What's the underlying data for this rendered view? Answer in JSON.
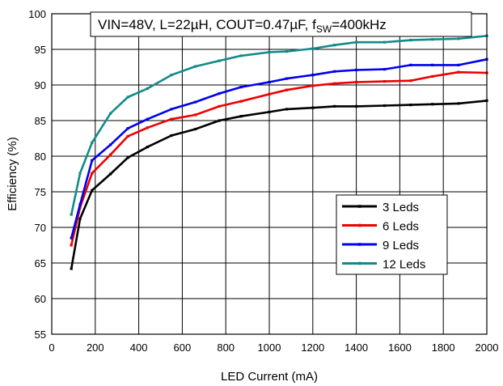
{
  "chart_data": {
    "type": "line",
    "title": "VIN=48V, L=22µH, COUT=0.47µF, f",
    "title_sub": "SW",
    "title_suffix": "=400kHz",
    "xlabel": "LED Current (mA)",
    "ylabel": "Efficiency (%)",
    "xlim": [
      0,
      2000
    ],
    "ylim": [
      55,
      100
    ],
    "xticks": [
      0,
      200,
      400,
      600,
      800,
      1000,
      1200,
      1400,
      1600,
      1800,
      2000
    ],
    "yticks": [
      55,
      60,
      65,
      70,
      75,
      80,
      85,
      90,
      95,
      100
    ],
    "grid": true,
    "legend_position": "lower-right",
    "series": [
      {
        "name": "3 Leds",
        "color": "#000000",
        "points": [
          [
            90,
            64.2
          ],
          [
            130,
            71.2
          ],
          [
            185,
            75.2
          ],
          [
            270,
            77.5
          ],
          [
            350,
            79.8
          ],
          [
            440,
            81.3
          ],
          [
            550,
            82.9
          ],
          [
            660,
            83.8
          ],
          [
            770,
            85.0
          ],
          [
            870,
            85.6
          ],
          [
            1000,
            86.2
          ],
          [
            1080,
            86.6
          ],
          [
            1200,
            86.8
          ],
          [
            1300,
            87.0
          ],
          [
            1400,
            87.0
          ],
          [
            1530,
            87.1
          ],
          [
            1650,
            87.2
          ],
          [
            1750,
            87.3
          ],
          [
            1870,
            87.4
          ],
          [
            2000,
            87.8
          ]
        ]
      },
      {
        "name": "6 Leds",
        "color": "#ee0000",
        "points": [
          [
            90,
            67.5
          ],
          [
            130,
            72.8
          ],
          [
            185,
            77.6
          ],
          [
            270,
            80.2
          ],
          [
            350,
            82.8
          ],
          [
            440,
            84.0
          ],
          [
            550,
            85.2
          ],
          [
            660,
            85.8
          ],
          [
            770,
            87.0
          ],
          [
            870,
            87.7
          ],
          [
            1000,
            88.7
          ],
          [
            1080,
            89.3
          ],
          [
            1200,
            89.9
          ],
          [
            1300,
            90.2
          ],
          [
            1400,
            90.4
          ],
          [
            1530,
            90.5
          ],
          [
            1650,
            90.6
          ],
          [
            1750,
            91.2
          ],
          [
            1870,
            91.8
          ],
          [
            2000,
            91.7
          ]
        ]
      },
      {
        "name": "9 Leds",
        "color": "#0000ee",
        "points": [
          [
            90,
            68.5
          ],
          [
            130,
            73.2
          ],
          [
            185,
            79.4
          ],
          [
            270,
            81.6
          ],
          [
            350,
            83.9
          ],
          [
            440,
            85.2
          ],
          [
            550,
            86.6
          ],
          [
            660,
            87.6
          ],
          [
            770,
            88.8
          ],
          [
            870,
            89.7
          ],
          [
            1000,
            90.4
          ],
          [
            1080,
            90.9
          ],
          [
            1200,
            91.4
          ],
          [
            1300,
            91.9
          ],
          [
            1400,
            92.1
          ],
          [
            1530,
            92.2
          ],
          [
            1650,
            92.8
          ],
          [
            1750,
            92.8
          ],
          [
            1870,
            92.8
          ],
          [
            2000,
            93.6
          ]
        ]
      },
      {
        "name": "12 Leds",
        "color": "#138a8a",
        "points": [
          [
            90,
            71.8
          ],
          [
            130,
            77.6
          ],
          [
            185,
            81.9
          ],
          [
            270,
            86.0
          ],
          [
            350,
            88.3
          ],
          [
            440,
            89.5
          ],
          [
            550,
            91.4
          ],
          [
            660,
            92.6
          ],
          [
            770,
            93.4
          ],
          [
            870,
            94.1
          ],
          [
            1000,
            94.6
          ],
          [
            1080,
            94.7
          ],
          [
            1200,
            95.1
          ],
          [
            1300,
            95.6
          ],
          [
            1400,
            96.0
          ],
          [
            1530,
            96.0
          ],
          [
            1650,
            96.3
          ],
          [
            1750,
            96.4
          ],
          [
            1870,
            96.5
          ],
          [
            2000,
            96.9
          ]
        ]
      }
    ]
  }
}
